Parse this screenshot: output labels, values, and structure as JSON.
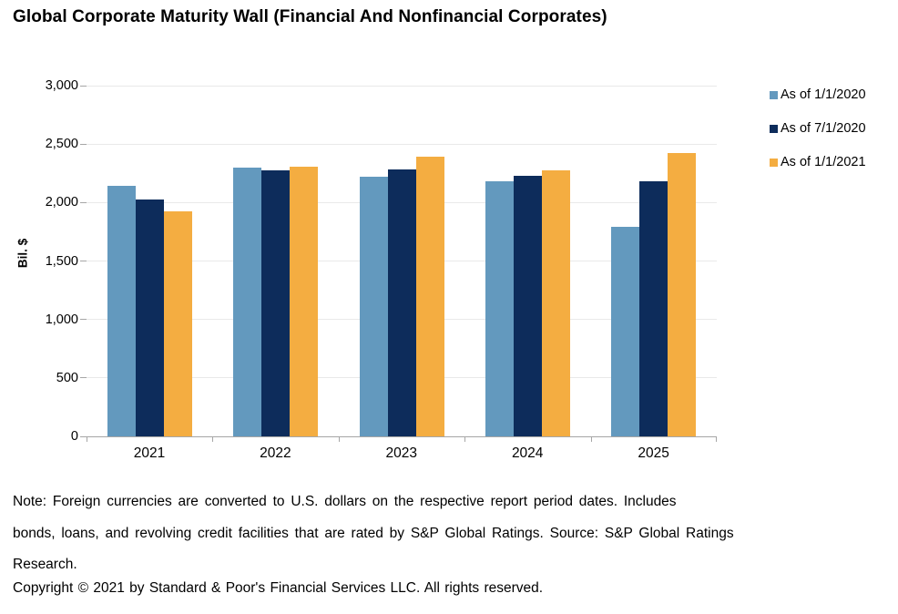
{
  "title": "Global Corporate Maturity Wall (Financial And Nonfinancial Corporates)",
  "chart_data": {
    "type": "bar",
    "title": "Global Corporate Maturity Wall (Financial And Nonfinancial Corporates)",
    "categories": [
      "2021",
      "2022",
      "2023",
      "2024",
      "2025"
    ],
    "series": [
      {
        "name": "As of 1/1/2020",
        "color": "#6399be",
        "values": [
          2145,
          2295,
          2220,
          2185,
          1795
        ]
      },
      {
        "name": "As of 7/1/2020",
        "color": "#0d2c5b",
        "values": [
          2025,
          2275,
          2280,
          2225,
          2185
        ]
      },
      {
        "name": "As of 1/1/2021",
        "color": "#f4ad41",
        "values": [
          1925,
          2310,
          2395,
          2275,
          2425
        ]
      }
    ],
    "xlabel": "",
    "ylabel": "Bil. $",
    "ylim": [
      0,
      3000
    ],
    "yticks": [
      0,
      500,
      1000,
      1500,
      2000,
      2500,
      3000
    ],
    "ytick_labels": [
      "0",
      "500",
      "1,000",
      "1,500",
      "2,000",
      "2,500",
      "3,000"
    ],
    "grid": true,
    "legend_position": "right"
  },
  "axis": {
    "ylabel": "Bil. $"
  },
  "note": {
    "line1": "Note: Foreign currencies are converted to U.S. dollars on the respective report period dates.  Includes",
    "line2": "bonds, loans, and revolving credit facilities that are rated by S&P Global Ratings. Source: S&P Global Ratings",
    "line3": "Research.",
    "copyright": "Copyright © 2021 by Standard & Poor's Financial Services LLC. All rights reserved."
  }
}
